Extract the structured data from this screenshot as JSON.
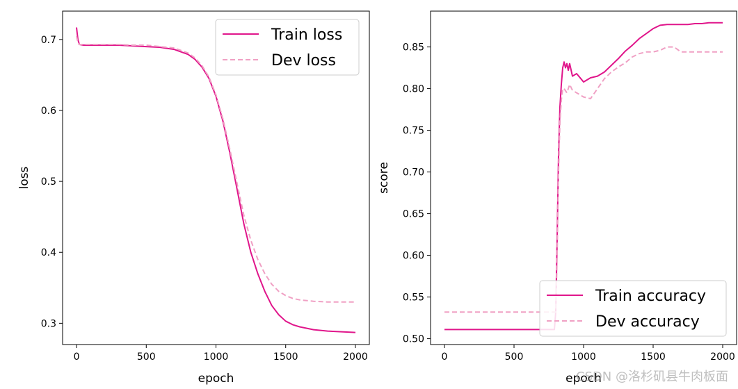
{
  "watermark": "CSDN @洛杉矶县牛肉板面",
  "colors": {
    "train": "#e0168b",
    "dev": "#f0a0c4",
    "axis": "#000000"
  },
  "chart_data": [
    {
      "type": "line",
      "xlabel": "epoch",
      "ylabel": "loss",
      "xlim": [
        -100,
        2100
      ],
      "ylim": [
        0.27,
        0.74
      ],
      "xticks": [
        0,
        500,
        1000,
        1500,
        2000
      ],
      "xtick_labels": [
        "0",
        "500",
        "1000",
        "1500",
        "2000"
      ],
      "yticks": [
        0.3,
        0.4,
        0.5,
        0.6,
        0.7
      ],
      "ytick_labels": [
        "0.3",
        "0.4",
        "0.5",
        "0.6",
        "0.7"
      ],
      "legend_position": "top-right",
      "series": [
        {
          "name": "Train loss",
          "style": "solid",
          "x": [
            0,
            10,
            20,
            50,
            100,
            200,
            300,
            400,
            500,
            600,
            700,
            800,
            850,
            900,
            950,
            1000,
            1050,
            1100,
            1150,
            1200,
            1250,
            1300,
            1350,
            1400,
            1450,
            1500,
            1550,
            1600,
            1700,
            1800,
            1900,
            2000
          ],
          "y": [
            0.717,
            0.7,
            0.693,
            0.692,
            0.692,
            0.692,
            0.692,
            0.691,
            0.69,
            0.689,
            0.686,
            0.679,
            0.672,
            0.661,
            0.645,
            0.62,
            0.585,
            0.54,
            0.49,
            0.44,
            0.4,
            0.37,
            0.345,
            0.325,
            0.312,
            0.303,
            0.298,
            0.295,
            0.291,
            0.289,
            0.288,
            0.287
          ]
        },
        {
          "name": "Dev loss",
          "style": "dashed",
          "x": [
            0,
            10,
            20,
            50,
            100,
            200,
            300,
            400,
            500,
            600,
            700,
            800,
            850,
            900,
            950,
            1000,
            1050,
            1100,
            1150,
            1200,
            1250,
            1300,
            1350,
            1400,
            1450,
            1500,
            1550,
            1600,
            1700,
            1800,
            1900,
            2000
          ],
          "y": [
            0.705,
            0.695,
            0.693,
            0.693,
            0.693,
            0.693,
            0.693,
            0.692,
            0.692,
            0.69,
            0.688,
            0.681,
            0.674,
            0.663,
            0.647,
            0.622,
            0.588,
            0.545,
            0.498,
            0.452,
            0.417,
            0.39,
            0.37,
            0.355,
            0.345,
            0.339,
            0.335,
            0.333,
            0.331,
            0.33,
            0.33,
            0.33
          ]
        }
      ]
    },
    {
      "type": "line",
      "xlabel": "epoch",
      "ylabel": "score",
      "xlim": [
        -100,
        2100
      ],
      "ylim": [
        0.493,
        0.893
      ],
      "xticks": [
        0,
        500,
        1000,
        1500,
        2000
      ],
      "xtick_labels": [
        "0",
        "500",
        "1000",
        "1500",
        "2000"
      ],
      "yticks": [
        0.5,
        0.55,
        0.6,
        0.65,
        0.7,
        0.75,
        0.8,
        0.85
      ],
      "ytick_labels": [
        "0.50",
        "0.55",
        "0.60",
        "0.65",
        "0.70",
        "0.75",
        "0.80",
        "0.85"
      ],
      "legend_position": "bottom-right",
      "series": [
        {
          "name": "Train accuracy",
          "style": "solid",
          "x": [
            0,
            700,
            710,
            720,
            730,
            740,
            750,
            760,
            770,
            780,
            790,
            800,
            810,
            820,
            830,
            840,
            850,
            860,
            870,
            880,
            890,
            900,
            920,
            950,
            980,
            1000,
            1050,
            1100,
            1150,
            1200,
            1250,
            1300,
            1350,
            1400,
            1450,
            1500,
            1550,
            1600,
            1650,
            1700,
            1750,
            1800,
            1850,
            1900,
            1950,
            2000
          ],
          "y": [
            0.511,
            0.511,
            0.511,
            0.511,
            0.511,
            0.511,
            0.511,
            0.511,
            0.511,
            0.511,
            0.511,
            0.532,
            0.62,
            0.72,
            0.778,
            0.805,
            0.825,
            0.832,
            0.825,
            0.83,
            0.822,
            0.83,
            0.815,
            0.818,
            0.812,
            0.808,
            0.813,
            0.815,
            0.82,
            0.828,
            0.836,
            0.845,
            0.852,
            0.86,
            0.866,
            0.872,
            0.876,
            0.877,
            0.877,
            0.877,
            0.877,
            0.878,
            0.878,
            0.879,
            0.879,
            0.879
          ]
        },
        {
          "name": "Dev accuracy",
          "style": "dashed",
          "x": [
            0,
            700,
            780,
            790,
            800,
            810,
            820,
            830,
            840,
            850,
            860,
            880,
            900,
            920,
            950,
            1000,
            1050,
            1100,
            1150,
            1200,
            1250,
            1300,
            1350,
            1400,
            1450,
            1500,
            1550,
            1600,
            1650,
            1700,
            1800,
            1900,
            2000
          ],
          "y": [
            0.532,
            0.532,
            0.532,
            0.532,
            0.532,
            0.6,
            0.7,
            0.76,
            0.786,
            0.8,
            0.8,
            0.795,
            0.805,
            0.798,
            0.795,
            0.79,
            0.788,
            0.8,
            0.812,
            0.82,
            0.826,
            0.831,
            0.838,
            0.842,
            0.844,
            0.844,
            0.846,
            0.85,
            0.85,
            0.844,
            0.844,
            0.844,
            0.844
          ]
        }
      ]
    }
  ]
}
